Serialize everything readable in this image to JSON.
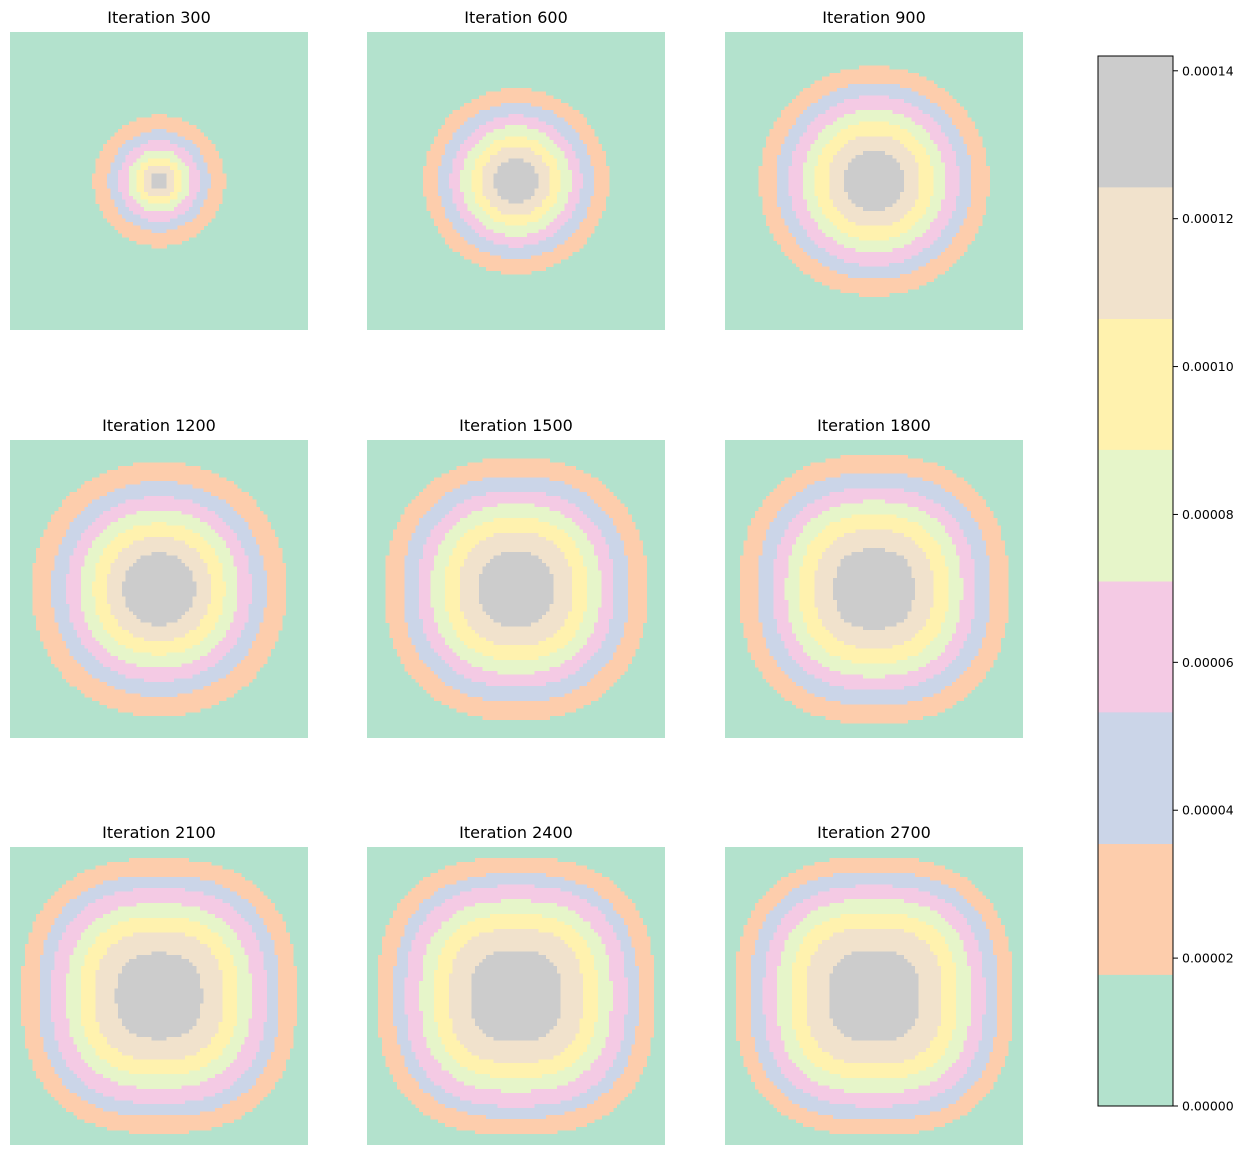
{
  "chart_data": {
    "type": "heatmap",
    "description_free": true,
    "panels": [
      {
        "title": "Iteration 300",
        "iteration": 300
      },
      {
        "title": "Iteration 600",
        "iteration": 600
      },
      {
        "title": "Iteration 900",
        "iteration": 900
      },
      {
        "title": "Iteration 1200",
        "iteration": 1200
      },
      {
        "title": "Iteration 1500",
        "iteration": 1500
      },
      {
        "title": "Iteration 1800",
        "iteration": 1800
      },
      {
        "title": "Iteration 2100",
        "iteration": 2100
      },
      {
        "title": "Iteration 2400",
        "iteration": 2400
      },
      {
        "title": "Iteration 2700",
        "iteration": 2700
      }
    ],
    "colorbar": {
      "min": 0.0,
      "max": 0.000142,
      "levels": [
        0.0,
        1.78e-05,
        3.55e-05,
        5.33e-05,
        7.1e-05,
        8.88e-05,
        0.0001065,
        0.0001243,
        0.000142
      ],
      "ticks": [
        0.0,
        2e-05,
        4e-05,
        6e-05,
        8e-05,
        0.0001,
        0.00012,
        0.00014
      ],
      "tick_labels": [
        "0.00000",
        "0.00002",
        "0.00004",
        "0.00006",
        "0.00008",
        "0.00010",
        "0.00012",
        "0.00014"
      ],
      "colors": [
        "#b3e2cd",
        "#fdcdac",
        "#cbd5e8",
        "#f4cae4",
        "#e6f5c9",
        "#fff2ae",
        "#f1e2cc",
        "#cccccc"
      ]
    },
    "contour_radii_fraction": [
      [
        0.44,
        0.34,
        0.27,
        0.21,
        0.16,
        0.11,
        0.06
      ],
      [
        0.62,
        0.52,
        0.44,
        0.37,
        0.3,
        0.23,
        0.15
      ],
      [
        0.77,
        0.66,
        0.57,
        0.48,
        0.4,
        0.31,
        0.2
      ],
      [
        0.85,
        0.72,
        0.62,
        0.53,
        0.44,
        0.35,
        0.24
      ],
      [
        0.88,
        0.76,
        0.66,
        0.57,
        0.48,
        0.38,
        0.25
      ],
      [
        0.9,
        0.78,
        0.68,
        0.59,
        0.5,
        0.4,
        0.27
      ],
      [
        0.92,
        0.81,
        0.72,
        0.62,
        0.53,
        0.43,
        0.29
      ],
      [
        0.93,
        0.82,
        0.74,
        0.64,
        0.55,
        0.45,
        0.31
      ],
      [
        0.93,
        0.83,
        0.74,
        0.65,
        0.56,
        0.46,
        0.31
      ]
    ],
    "squareness": [
      1.0,
      1.0,
      1.0,
      0.94,
      0.88,
      0.84,
      0.8,
      0.78,
      0.77
    ]
  }
}
